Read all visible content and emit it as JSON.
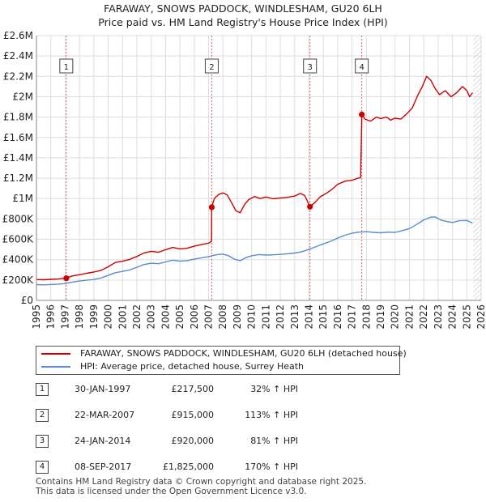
{
  "title": {
    "line1": "FARAWAY, SNOWS PADDOCK, WINDLESHAM, GU20 6LH",
    "line2": "Price paid vs. HM Land Registry's House Price Index (HPI)"
  },
  "chart_data": {
    "type": "line",
    "title": "FARAWAY, SNOWS PADDOCK, WINDLESHAM, GU20 6LH — Price paid vs. HM Land Registry's House Price Index (HPI)",
    "xlabel": "",
    "ylabel": "",
    "xlim": [
      1995,
      2026
    ],
    "ylim": [
      0,
      2600000
    ],
    "grid": true,
    "y_ticks": [
      {
        "value": 0,
        "label": "£0"
      },
      {
        "value": 200000,
        "label": "£200K"
      },
      {
        "value": 400000,
        "label": "£400K"
      },
      {
        "value": 600000,
        "label": "£600K"
      },
      {
        "value": 800000,
        "label": "£800K"
      },
      {
        "value": 1000000,
        "label": "£1M"
      },
      {
        "value": 1200000,
        "label": "£1.2M"
      },
      {
        "value": 1400000,
        "label": "£1.4M"
      },
      {
        "value": 1600000,
        "label": "£1.6M"
      },
      {
        "value": 1800000,
        "label": "£1.8M"
      },
      {
        "value": 2000000,
        "label": "£2M"
      },
      {
        "value": 2200000,
        "label": "£2.2M"
      },
      {
        "value": 2400000,
        "label": "£2.4M"
      },
      {
        "value": 2600000,
        "label": "£2.6M"
      }
    ],
    "x_ticks": [
      "1995",
      "1996",
      "1997",
      "1998",
      "1999",
      "2000",
      "2001",
      "2002",
      "2003",
      "2004",
      "2005",
      "2006",
      "2007",
      "2008",
      "2009",
      "2010",
      "2011",
      "2012",
      "2013",
      "2014",
      "2015",
      "2016",
      "2017",
      "2018",
      "2019",
      "2020",
      "2021",
      "2022",
      "2023",
      "2024",
      "2025",
      "2026"
    ],
    "series": [
      {
        "name": "FARAWAY, SNOWS PADDOCK, WINDLESHAM, GU20 6LH (detached house)",
        "color": "#cc0000",
        "points": [
          [
            1995.0,
            205000
          ],
          [
            1995.5,
            203000
          ],
          [
            1996.0,
            207000
          ],
          [
            1996.5,
            210000
          ],
          [
            1997.08,
            217500
          ],
          [
            1997.5,
            240000
          ],
          [
            1998.0,
            252000
          ],
          [
            1998.5,
            266000
          ],
          [
            1999.0,
            278000
          ],
          [
            1999.5,
            295000
          ],
          [
            2000.0,
            330000
          ],
          [
            2000.5,
            372000
          ],
          [
            2001.0,
            385000
          ],
          [
            2001.5,
            402000
          ],
          [
            2002.0,
            432000
          ],
          [
            2002.5,
            466000
          ],
          [
            2003.0,
            482000
          ],
          [
            2003.5,
            472000
          ],
          [
            2004.0,
            498000
          ],
          [
            2004.5,
            520000
          ],
          [
            2005.0,
            506000
          ],
          [
            2005.5,
            512000
          ],
          [
            2006.0,
            532000
          ],
          [
            2006.5,
            548000
          ],
          [
            2007.0,
            562000
          ],
          [
            2007.2,
            580000
          ],
          [
            2007.22,
            915000
          ],
          [
            2007.4,
            1000000
          ],
          [
            2007.7,
            1040000
          ],
          [
            2008.0,
            1055000
          ],
          [
            2008.3,
            1035000
          ],
          [
            2008.6,
            960000
          ],
          [
            2008.9,
            880000
          ],
          [
            2009.2,
            860000
          ],
          [
            2009.5,
            940000
          ],
          [
            2009.8,
            990000
          ],
          [
            2010.2,
            1020000
          ],
          [
            2010.6,
            1000000
          ],
          [
            2011.0,
            1015000
          ],
          [
            2011.5,
            998000
          ],
          [
            2012.0,
            1005000
          ],
          [
            2012.5,
            1012000
          ],
          [
            2013.0,
            1025000
          ],
          [
            2013.4,
            1050000
          ],
          [
            2013.7,
            1030000
          ],
          [
            2014.07,
            920000
          ],
          [
            2014.4,
            960000
          ],
          [
            2014.8,
            1020000
          ],
          [
            2015.2,
            1050000
          ],
          [
            2015.6,
            1090000
          ],
          [
            2016.0,
            1140000
          ],
          [
            2016.5,
            1170000
          ],
          [
            2017.0,
            1180000
          ],
          [
            2017.4,
            1200000
          ],
          [
            2017.6,
            1205000
          ],
          [
            2017.68,
            1825000
          ],
          [
            2017.9,
            1780000
          ],
          [
            2018.3,
            1760000
          ],
          [
            2018.7,
            1800000
          ],
          [
            2019.0,
            1785000
          ],
          [
            2019.4,
            1800000
          ],
          [
            2019.7,
            1770000
          ],
          [
            2020.0,
            1790000
          ],
          [
            2020.4,
            1780000
          ],
          [
            2020.8,
            1830000
          ],
          [
            2021.2,
            1890000
          ],
          [
            2021.6,
            2020000
          ],
          [
            2021.9,
            2100000
          ],
          [
            2022.2,
            2200000
          ],
          [
            2022.5,
            2160000
          ],
          [
            2022.8,
            2080000
          ],
          [
            2023.1,
            2020000
          ],
          [
            2023.5,
            2060000
          ],
          [
            2023.9,
            2000000
          ],
          [
            2024.3,
            2040000
          ],
          [
            2024.7,
            2100000
          ],
          [
            2025.0,
            2060000
          ],
          [
            2025.2,
            2000000
          ],
          [
            2025.4,
            2040000
          ]
        ]
      },
      {
        "name": "HPI: Average price, detached house, Surrey Heath",
        "color": "#5b8ccf",
        "points": [
          [
            1995.0,
            155000
          ],
          [
            1995.5,
            153000
          ],
          [
            1996.0,
            156000
          ],
          [
            1996.5,
            160000
          ],
          [
            1997.0,
            165000
          ],
          [
            1997.5,
            180000
          ],
          [
            1998.0,
            190000
          ],
          [
            1998.5,
            198000
          ],
          [
            1999.0,
            205000
          ],
          [
            1999.5,
            220000
          ],
          [
            2000.0,
            245000
          ],
          [
            2000.5,
            272000
          ],
          [
            2001.0,
            285000
          ],
          [
            2001.5,
            300000
          ],
          [
            2002.0,
            325000
          ],
          [
            2002.5,
            352000
          ],
          [
            2003.0,
            365000
          ],
          [
            2003.5,
            360000
          ],
          [
            2004.0,
            378000
          ],
          [
            2004.5,
            395000
          ],
          [
            2005.0,
            385000
          ],
          [
            2005.5,
            390000
          ],
          [
            2006.0,
            405000
          ],
          [
            2006.5,
            418000
          ],
          [
            2007.0,
            430000
          ],
          [
            2007.5,
            448000
          ],
          [
            2008.0,
            455000
          ],
          [
            2008.4,
            438000
          ],
          [
            2008.8,
            405000
          ],
          [
            2009.2,
            390000
          ],
          [
            2009.6,
            420000
          ],
          [
            2010.0,
            438000
          ],
          [
            2010.5,
            450000
          ],
          [
            2011.0,
            445000
          ],
          [
            2011.5,
            448000
          ],
          [
            2012.0,
            452000
          ],
          [
            2012.5,
            458000
          ],
          [
            2013.0,
            465000
          ],
          [
            2013.5,
            478000
          ],
          [
            2014.0,
            502000
          ],
          [
            2014.5,
            528000
          ],
          [
            2015.0,
            555000
          ],
          [
            2015.5,
            580000
          ],
          [
            2016.0,
            612000
          ],
          [
            2016.5,
            640000
          ],
          [
            2017.0,
            660000
          ],
          [
            2017.5,
            670000
          ],
          [
            2018.0,
            675000
          ],
          [
            2018.5,
            668000
          ],
          [
            2019.0,
            664000
          ],
          [
            2019.5,
            670000
          ],
          [
            2020.0,
            668000
          ],
          [
            2020.5,
            685000
          ],
          [
            2021.0,
            705000
          ],
          [
            2021.5,
            745000
          ],
          [
            2022.0,
            790000
          ],
          [
            2022.5,
            818000
          ],
          [
            2022.8,
            820000
          ],
          [
            2023.2,
            788000
          ],
          [
            2023.6,
            775000
          ],
          [
            2024.0,
            765000
          ],
          [
            2024.5,
            782000
          ],
          [
            2025.0,
            785000
          ],
          [
            2025.4,
            760000
          ]
        ]
      }
    ],
    "sales": [
      {
        "id": "1",
        "year": 1997.08,
        "price": 217500
      },
      {
        "id": "2",
        "year": 2007.22,
        "price": 915000
      },
      {
        "id": "3",
        "year": 2014.07,
        "price": 920000
      },
      {
        "id": "4",
        "year": 2017.68,
        "price": 1825000
      }
    ]
  },
  "legend": {
    "property_label": "FARAWAY, SNOWS PADDOCK, WINDLESHAM, GU20 6LH (detached house)",
    "hpi_label": "HPI: Average price, detached house, Surrey Heath",
    "property_color": "#cc0000",
    "hpi_color": "#5b8ccf"
  },
  "sales_table": [
    {
      "num": "1",
      "date": "30-JAN-1997",
      "price": "£217,500",
      "hpi": "32% ↑ HPI"
    },
    {
      "num": "2",
      "date": "22-MAR-2007",
      "price": "£915,000",
      "hpi": "113% ↑ HPI"
    },
    {
      "num": "3",
      "date": "24-JAN-2014",
      "price": "£920,000",
      "hpi": "81% ↑ HPI"
    },
    {
      "num": "4",
      "date": "08-SEP-2017",
      "price": "£1,825,000",
      "hpi": "170% ↑ HPI"
    }
  ],
  "footer": {
    "line1": "Contains HM Land Registry data © Crown copyright and database right 2025.",
    "line2": "This data is licensed under the Open Government Licence v3.0."
  }
}
